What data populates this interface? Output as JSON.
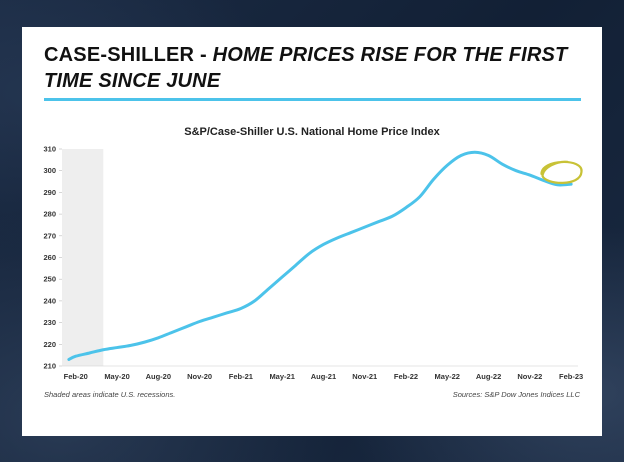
{
  "header": {
    "title_lead": "CASE-SHILLER - ",
    "title_emphasis": "HOME PRICES RISE FOR THE FIRST TIME SINCE JUNE"
  },
  "colors": {
    "line": "#4cc3ea",
    "recession_shade": "#eeeeee",
    "highlight_circle": "#c8c236",
    "grid": "#e6e6e6"
  },
  "footnotes": {
    "left": "Shaded areas indicate U.S. recessions.",
    "right": "Sources: S&P Dow Jones Indices LLC"
  },
  "chart_data": {
    "type": "line",
    "title": "S&P/Case-Shiller U.S. National Home Price Index",
    "xlabel": "",
    "ylabel": "",
    "ylim": [
      210,
      310
    ],
    "yticks": [
      210,
      220,
      230,
      240,
      250,
      260,
      270,
      280,
      290,
      300,
      310
    ],
    "x_tick_labels": [
      "Feb-20",
      "May-20",
      "Aug-20",
      "Nov-20",
      "Feb-21",
      "May-21",
      "Aug-21",
      "Nov-21",
      "Feb-22",
      "May-22",
      "Aug-22",
      "Nov-22",
      "Feb-23"
    ],
    "x_tick_month_index": [
      0,
      3,
      6,
      9,
      12,
      15,
      18,
      21,
      24,
      27,
      30,
      33,
      36
    ],
    "x_range_month_index": [
      -1,
      36.5
    ],
    "recession_shading": [
      {
        "from_month_index": -1,
        "to_month_index": 2,
        "label": "COVID recession"
      }
    ],
    "highlight": {
      "month_index": 35.3,
      "value": 299,
      "note": "Highlighted recent uptick"
    },
    "series": [
      {
        "name": "S&P/Case-Shiller U.S. National Home Price Index",
        "x_month_index": [
          -0.5,
          0,
          1,
          2,
          3,
          4,
          5,
          6,
          7,
          8,
          9,
          10,
          11,
          12,
          13,
          14,
          15,
          16,
          17,
          18,
          19,
          20,
          21,
          22,
          23,
          24,
          25,
          26,
          27,
          28,
          29,
          30,
          31,
          32,
          33,
          34,
          35,
          36
        ],
        "values": [
          213.0,
          214.5,
          216.0,
          217.5,
          218.5,
          219.5,
          221.0,
          223.0,
          225.5,
          228.0,
          230.5,
          232.5,
          234.5,
          236.5,
          240.0,
          245.5,
          251.0,
          256.5,
          262.0,
          266.0,
          269.0,
          271.5,
          274.0,
          276.5,
          279.0,
          283.0,
          288.0,
          296.0,
          302.5,
          307.0,
          308.5,
          307.0,
          303.0,
          300.0,
          298.0,
          295.5,
          293.5,
          293.8
        ]
      }
    ]
  }
}
